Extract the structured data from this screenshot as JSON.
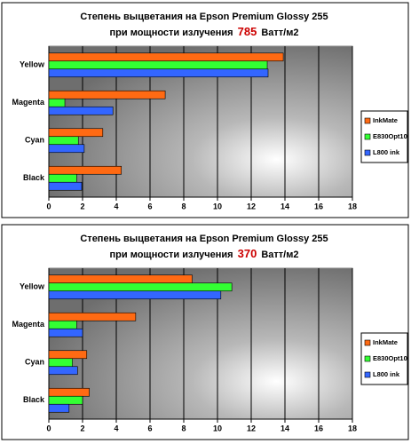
{
  "chart_data": [
    {
      "type": "bar",
      "orientation": "horizontal",
      "title": "Степень выцветания на Epson Premium Glossy 255",
      "subtitle_prefix": "при мощности излучения",
      "subtitle_value": "785",
      "subtitle_unit": "Ватт/м2",
      "subtitle_value_color": "#cc0000",
      "categories": [
        "Yellow",
        "Magenta",
        "Cyan",
        "Black"
      ],
      "series": [
        {
          "name": "InkMate",
          "color": "#ff6a13",
          "values": [
            13.9,
            6.9,
            3.2,
            4.3
          ]
        },
        {
          "name": "E830Opt10",
          "color": "#33ff33",
          "values": [
            12.95,
            0.95,
            1.75,
            1.65
          ]
        },
        {
          "name": "L800 ink",
          "color": "#3366ff",
          "values": [
            13.0,
            3.8,
            2.1,
            1.95
          ]
        }
      ],
      "xlim": [
        0,
        18
      ],
      "xticks": [
        0,
        2,
        4,
        6,
        8,
        10,
        12,
        14,
        16,
        18
      ],
      "grid": true
    },
    {
      "type": "bar",
      "orientation": "horizontal",
      "title": "Степень выцветания на Epson Premium Glossy 255",
      "subtitle_prefix": "при мощности излучения",
      "subtitle_value": "370",
      "subtitle_unit": "Ватт/м2",
      "subtitle_value_color": "#cc0000",
      "categories": [
        "Yellow",
        "Magenta",
        "Cyan",
        "Black"
      ],
      "series": [
        {
          "name": "InkMate",
          "color": "#ff6a13",
          "values": [
            8.5,
            5.15,
            2.25,
            2.4
          ]
        },
        {
          "name": "E830Opt10",
          "color": "#33ff33",
          "values": [
            10.85,
            1.65,
            1.4,
            2.0
          ]
        },
        {
          "name": "L800 ink",
          "color": "#3366ff",
          "values": [
            10.2,
            2.0,
            1.7,
            1.2
          ]
        }
      ],
      "xlim": [
        0,
        18
      ],
      "xticks": [
        0,
        2,
        4,
        6,
        8,
        10,
        12,
        14,
        16,
        18
      ],
      "grid": true
    }
  ]
}
